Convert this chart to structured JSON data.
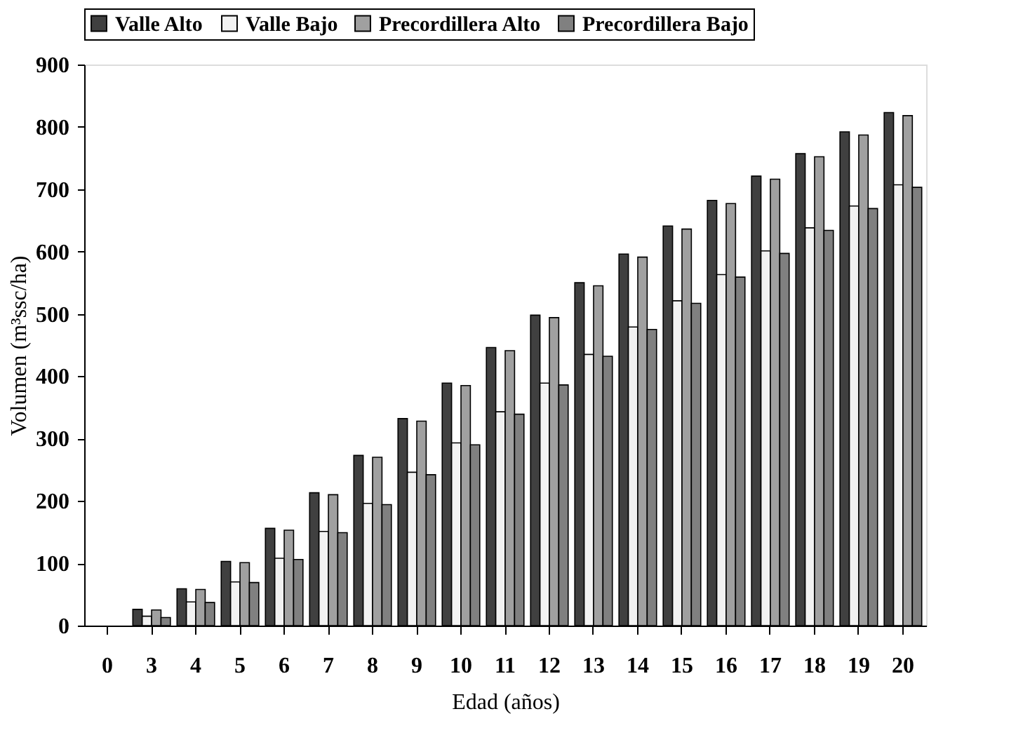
{
  "chart_data": {
    "type": "bar",
    "xlabel": "Edad (años)",
    "ylabel": "Volumen (m³ssc/ha)",
    "categories": [
      "0",
      "3",
      "4",
      "5",
      "6",
      "7",
      "8",
      "9",
      "10",
      "11",
      "12",
      "13",
      "14",
      "15",
      "16",
      "17",
      "18",
      "19",
      "20"
    ],
    "ylim": [
      0,
      900
    ],
    "yticks": [
      0,
      100,
      200,
      300,
      400,
      500,
      600,
      700,
      800,
      900
    ],
    "grid": false,
    "legend": "top",
    "series": [
      {
        "name": "Valle Alto",
        "color": "#404040",
        "values": [
          null,
          26,
          59,
          103,
          156,
          213,
          273,
          332,
          389,
          446,
          498,
          550,
          596,
          641,
          682,
          721,
          757,
          792,
          823
        ]
      },
      {
        "name": "Valle Bajo",
        "color": "#f2f2f2",
        "values": [
          null,
          15,
          38,
          70,
          108,
          151,
          196,
          246,
          293,
          343,
          389,
          435,
          479,
          521,
          563,
          601,
          638,
          673,
          707
        ]
      },
      {
        "name": "Precordillera Alto",
        "color": "#a0a0a0",
        "values": [
          null,
          25,
          58,
          101,
          153,
          210,
          270,
          328,
          385,
          441,
          494,
          545,
          591,
          636,
          677,
          716,
          752,
          787,
          818
        ]
      },
      {
        "name": "Precordillera Bajo",
        "color": "#808080",
        "values": [
          null,
          13,
          37,
          69,
          106,
          149,
          194,
          242,
          290,
          339,
          386,
          432,
          475,
          517,
          559,
          597,
          634,
          669,
          703
        ]
      }
    ]
  }
}
